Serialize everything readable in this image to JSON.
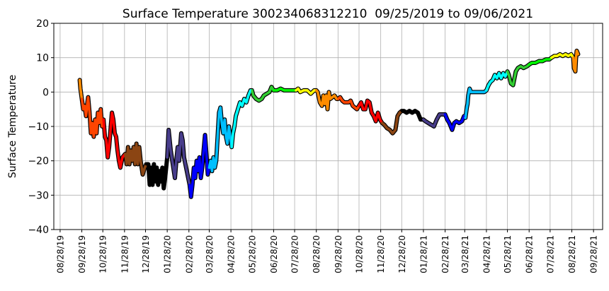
{
  "chart_data": {
    "type": "line",
    "title": "Surface Temperature 300234068312210  09/25/2019 to 09/06/2021",
    "xlabel": "",
    "ylabel": "Surface Temperature",
    "xlim": [
      "2019-08-19",
      "2021-10-11"
    ],
    "ylim": [
      -40,
      20
    ],
    "grid": true,
    "yticks": [
      "20",
      "10",
      "0",
      "−10",
      "−20",
      "−30",
      "−40"
    ],
    "ytick_values": [
      20,
      10,
      0,
      -10,
      -20,
      -30,
      -40
    ],
    "xticks": [
      "08/28/19",
      "09/28/19",
      "10/28/19",
      "11/28/19",
      "12/28/19",
      "01/28/20",
      "02/28/20",
      "03/28/20",
      "04/28/20",
      "05/28/20",
      "06/28/20",
      "07/28/20",
      "08/28/20",
      "09/28/20",
      "10/28/20",
      "11/28/20",
      "12/28/20",
      "01/28/21",
      "02/28/21",
      "03/28/21",
      "04/28/21",
      "05/28/21",
      "06/28/21",
      "07/28/21",
      "08/28/21",
      "09/28/21"
    ],
    "color_periods": [
      {
        "until": "2019-09-28",
        "color": "#FF8C00"
      },
      {
        "until": "2019-10-28",
        "color": "#FF4500"
      },
      {
        "until": "2019-11-28",
        "color": "#FF0000"
      },
      {
        "until": "2019-12-28",
        "color": "#8B4513"
      },
      {
        "until": "2020-01-28",
        "color": "#000000"
      },
      {
        "until": "2020-02-28",
        "color": "#483D8B"
      },
      {
        "until": "2020-03-28",
        "color": "#0000FF"
      },
      {
        "until": "2020-04-28",
        "color": "#00BFFF"
      },
      {
        "until": "2020-05-28",
        "color": "#00FFFF"
      },
      {
        "until": "2020-06-28",
        "color": "#32CD32"
      },
      {
        "until": "2020-07-28",
        "color": "#00FF00"
      },
      {
        "until": "2020-08-28",
        "color": "#FFFF00"
      },
      {
        "until": "2020-09-28",
        "color": "#FF8C00"
      },
      {
        "until": "2020-10-28",
        "color": "#FF4500"
      },
      {
        "until": "2020-11-28",
        "color": "#FF0000"
      },
      {
        "until": "2020-12-28",
        "color": "#8B4513"
      },
      {
        "until": "2021-01-28",
        "color": "#000000"
      },
      {
        "until": "2021-02-28",
        "color": "#483D8B"
      },
      {
        "until": "2021-03-28",
        "color": "#0000FF"
      },
      {
        "until": "2021-04-28",
        "color": "#00BFFF"
      },
      {
        "until": "2021-05-28",
        "color": "#00FFFF"
      },
      {
        "until": "2021-06-28",
        "color": "#32CD32"
      },
      {
        "until": "2021-07-28",
        "color": "#00FF00"
      },
      {
        "until": "2021-08-28",
        "color": "#FFFF00"
      },
      {
        "until": "2021-10-11",
        "color": "#FF8C00"
      }
    ],
    "points": [
      [
        "2019-09-25",
        3.5
      ],
      [
        "2019-09-26",
        1
      ],
      [
        "2019-09-28",
        -2
      ],
      [
        "2019-09-30",
        -5
      ],
      [
        "2019-10-02",
        -4
      ],
      [
        "2019-10-04",
        -7
      ],
      [
        "2019-10-06",
        -3
      ],
      [
        "2019-10-07",
        -1.5
      ],
      [
        "2019-10-09",
        -6
      ],
      [
        "2019-10-11",
        -12
      ],
      [
        "2019-10-13",
        -9
      ],
      [
        "2019-10-15",
        -13
      ],
      [
        "2019-10-17",
        -8
      ],
      [
        "2019-10-19",
        -12
      ],
      [
        "2019-10-21",
        -6
      ],
      [
        "2019-10-23",
        -9
      ],
      [
        "2019-10-25",
        -5
      ],
      [
        "2019-10-27",
        -10
      ],
      [
        "2019-10-29",
        -8
      ],
      [
        "2019-10-31",
        -13
      ],
      [
        "2019-11-02",
        -14
      ],
      [
        "2019-11-04",
        -19
      ],
      [
        "2019-11-06",
        -16
      ],
      [
        "2019-11-08",
        -11
      ],
      [
        "2019-11-10",
        -6
      ],
      [
        "2019-11-12",
        -8
      ],
      [
        "2019-11-14",
        -12
      ],
      [
        "2019-11-16",
        -13
      ],
      [
        "2019-11-18",
        -17
      ],
      [
        "2019-11-20",
        -20
      ],
      [
        "2019-11-22",
        -22
      ],
      [
        "2019-11-25",
        -19
      ],
      [
        "2019-11-29",
        -18
      ],
      [
        "2019-12-01",
        -21
      ],
      [
        "2019-12-03",
        -16
      ],
      [
        "2019-12-05",
        -21
      ],
      [
        "2019-12-07",
        -17
      ],
      [
        "2019-12-09",
        -20
      ],
      [
        "2019-12-11",
        -16
      ],
      [
        "2019-12-13",
        -21
      ],
      [
        "2019-12-15",
        -15
      ],
      [
        "2019-12-17",
        -21
      ],
      [
        "2019-12-19",
        -16
      ],
      [
        "2019-12-21",
        -20
      ],
      [
        "2019-12-24",
        -24
      ],
      [
        "2019-12-27",
        -22
      ],
      [
        "2019-12-29",
        -21
      ],
      [
        "2020-01-01",
        -21
      ],
      [
        "2020-01-03",
        -27
      ],
      [
        "2020-01-05",
        -22
      ],
      [
        "2020-01-07",
        -27
      ],
      [
        "2020-01-09",
        -21
      ],
      [
        "2020-01-11",
        -26
      ],
      [
        "2020-01-13",
        -22
      ],
      [
        "2020-01-15",
        -27
      ],
      [
        "2020-01-17",
        -23
      ],
      [
        "2020-01-19",
        -26
      ],
      [
        "2020-01-21",
        -22
      ],
      [
        "2020-01-23",
        -28
      ],
      [
        "2020-01-25",
        -25
      ],
      [
        "2020-01-28",
        -19
      ],
      [
        "2020-01-30",
        -11
      ],
      [
        "2020-02-02",
        -17
      ],
      [
        "2020-02-05",
        -21
      ],
      [
        "2020-02-08",
        -25
      ],
      [
        "2020-02-10",
        -20
      ],
      [
        "2020-02-12",
        -16
      ],
      [
        "2020-02-14",
        -20
      ],
      [
        "2020-02-17",
        -12
      ],
      [
        "2020-02-19",
        -14
      ],
      [
        "2020-02-21",
        -19
      ],
      [
        "2020-02-24",
        -22
      ],
      [
        "2020-02-27",
        -25
      ],
      [
        "2020-02-29",
        -27
      ],
      [
        "2020-03-02",
        -30.5
      ],
      [
        "2020-03-04",
        -27
      ],
      [
        "2020-03-06",
        -22
      ],
      [
        "2020-03-08",
        -25
      ],
      [
        "2020-03-10",
        -20
      ],
      [
        "2020-03-12",
        -23
      ],
      [
        "2020-03-14",
        -19
      ],
      [
        "2020-03-16",
        -25
      ],
      [
        "2020-03-18",
        -22
      ],
      [
        "2020-03-20",
        -17
      ],
      [
        "2020-03-22",
        -12.5
      ],
      [
        "2020-03-24",
        -18
      ],
      [
        "2020-03-26",
        -24
      ],
      [
        "2020-03-28",
        -22
      ],
      [
        "2020-03-30",
        -20
      ],
      [
        "2020-04-01",
        -23
      ],
      [
        "2020-04-03",
        -19
      ],
      [
        "2020-04-05",
        -22
      ],
      [
        "2020-04-07",
        -20
      ],
      [
        "2020-04-09",
        -13
      ],
      [
        "2020-04-11",
        -6
      ],
      [
        "2020-04-13",
        -4.5
      ],
      [
        "2020-04-15",
        -9
      ],
      [
        "2020-04-17",
        -12
      ],
      [
        "2020-04-19",
        -8
      ],
      [
        "2020-04-21",
        -13
      ],
      [
        "2020-04-23",
        -15
      ],
      [
        "2020-04-25",
        -10
      ],
      [
        "2020-04-27",
        -13
      ],
      [
        "2020-04-29",
        -16
      ],
      [
        "2020-05-01",
        -12
      ],
      [
        "2020-05-03",
        -10
      ],
      [
        "2020-05-05",
        -7
      ],
      [
        "2020-05-08",
        -5
      ],
      [
        "2020-05-11",
        -3
      ],
      [
        "2020-05-14",
        -4
      ],
      [
        "2020-05-17",
        -2
      ],
      [
        "2020-05-20",
        -3
      ],
      [
        "2020-05-23",
        -1
      ],
      [
        "2020-05-26",
        0.5
      ],
      [
        "2020-05-28",
        0.5
      ],
      [
        "2020-05-30",
        -1
      ],
      [
        "2020-06-03",
        -2
      ],
      [
        "2020-06-07",
        -2.5
      ],
      [
        "2020-06-11",
        -2
      ],
      [
        "2020-06-14",
        -1
      ],
      [
        "2020-06-18",
        -0.5
      ],
      [
        "2020-06-22",
        0
      ],
      [
        "2020-06-25",
        1.5
      ],
      [
        "2020-06-28",
        0.5
      ],
      [
        "2020-07-03",
        0.5
      ],
      [
        "2020-07-08",
        1
      ],
      [
        "2020-07-13",
        0.5
      ],
      [
        "2020-07-20",
        0.5
      ],
      [
        "2020-07-27",
        0.5
      ],
      [
        "2020-07-30",
        0.5
      ],
      [
        "2020-08-02",
        1
      ],
      [
        "2020-08-05",
        0
      ],
      [
        "2020-08-10",
        0.5
      ],
      [
        "2020-08-15",
        0.5
      ],
      [
        "2020-08-20",
        -0.5
      ],
      [
        "2020-08-25",
        0.5
      ],
      [
        "2020-08-28",
        0.5
      ],
      [
        "2020-08-30",
        0
      ],
      [
        "2020-09-02",
        -3
      ],
      [
        "2020-09-05",
        -4
      ],
      [
        "2020-09-07",
        -1
      ],
      [
        "2020-09-09",
        -3.5
      ],
      [
        "2020-09-11",
        -1
      ],
      [
        "2020-09-13",
        -5
      ],
      [
        "2020-09-15",
        0
      ],
      [
        "2020-09-17",
        -2
      ],
      [
        "2020-09-20",
        -1.5
      ],
      [
        "2020-09-23",
        -1
      ],
      [
        "2020-09-26",
        -2
      ],
      [
        "2020-09-28",
        -2
      ],
      [
        "2020-10-01",
        -1.5
      ],
      [
        "2020-10-04",
        -2.5
      ],
      [
        "2020-10-07",
        -3
      ],
      [
        "2020-10-10",
        -3
      ],
      [
        "2020-10-13",
        -3
      ],
      [
        "2020-10-16",
        -2.5
      ],
      [
        "2020-10-19",
        -4
      ],
      [
        "2020-10-22",
        -4.5
      ],
      [
        "2020-10-25",
        -5
      ],
      [
        "2020-10-28",
        -4
      ],
      [
        "2020-10-31",
        -3
      ],
      [
        "2020-11-03",
        -5
      ],
      [
        "2020-11-06",
        -5
      ],
      [
        "2020-11-09",
        -2.5
      ],
      [
        "2020-11-12",
        -3
      ],
      [
        "2020-11-15",
        -6
      ],
      [
        "2020-11-18",
        -7
      ],
      [
        "2020-11-21",
        -8.5
      ],
      [
        "2020-11-24",
        -6
      ],
      [
        "2020-11-27",
        -8
      ],
      [
        "2020-11-30",
        -9
      ],
      [
        "2020-12-03",
        -9.5
      ],
      [
        "2020-12-07",
        -10.5
      ],
      [
        "2020-12-11",
        -11
      ],
      [
        "2020-12-15",
        -12
      ],
      [
        "2020-12-19",
        -11
      ],
      [
        "2020-12-22",
        -7
      ],
      [
        "2020-12-25",
        -6
      ],
      [
        "2020-12-28",
        -5.5
      ],
      [
        "2020-12-31",
        -5.5
      ],
      [
        "2021-01-04",
        -6
      ],
      [
        "2021-01-08",
        -5.5
      ],
      [
        "2021-01-12",
        -6
      ],
      [
        "2021-01-16",
        -5.5
      ],
      [
        "2021-01-20",
        -6
      ],
      [
        "2021-01-24",
        -8
      ],
      [
        "2021-01-28",
        -8
      ],
      [
        "2021-01-31",
        -8.5
      ],
      [
        "2021-02-04",
        -9
      ],
      [
        "2021-02-08",
        -9.5
      ],
      [
        "2021-02-12",
        -10
      ],
      [
        "2021-02-16",
        -8
      ],
      [
        "2021-02-20",
        -6.5
      ],
      [
        "2021-02-24",
        -6.5
      ],
      [
        "2021-02-28",
        -6.5
      ],
      [
        "2021-03-03",
        -8
      ],
      [
        "2021-03-06",
        -9
      ],
      [
        "2021-03-10",
        -11
      ],
      [
        "2021-03-13",
        -9
      ],
      [
        "2021-03-16",
        -8.5
      ],
      [
        "2021-03-20",
        -9
      ],
      [
        "2021-03-24",
        -8.5
      ],
      [
        "2021-03-27",
        -7
      ],
      [
        "2021-03-29",
        -7.5
      ],
      [
        "2021-03-31",
        -4.5
      ],
      [
        "2021-04-01",
        -3.5
      ],
      [
        "2021-04-02",
        -1
      ],
      [
        "2021-04-04",
        1
      ],
      [
        "2021-04-06",
        0
      ],
      [
        "2021-04-10",
        0
      ],
      [
        "2021-04-15",
        0
      ],
      [
        "2021-04-20",
        0
      ],
      [
        "2021-04-25",
        0
      ],
      [
        "2021-04-28",
        0.5
      ],
      [
        "2021-05-01",
        2
      ],
      [
        "2021-05-04",
        3
      ],
      [
        "2021-05-07",
        3.5
      ],
      [
        "2021-05-10",
        5
      ],
      [
        "2021-05-13",
        4
      ],
      [
        "2021-05-16",
        5.5
      ],
      [
        "2021-05-19",
        4
      ],
      [
        "2021-05-22",
        5.5
      ],
      [
        "2021-05-25",
        4.5
      ],
      [
        "2021-05-28",
        6
      ],
      [
        "2021-05-30",
        5
      ],
      [
        "2021-06-02",
        2.5
      ],
      [
        "2021-06-05",
        2
      ],
      [
        "2021-06-07",
        4
      ],
      [
        "2021-06-09",
        6
      ],
      [
        "2021-06-12",
        7
      ],
      [
        "2021-06-16",
        7.5
      ],
      [
        "2021-06-20",
        7
      ],
      [
        "2021-06-25",
        7.5
      ],
      [
        "2021-06-28",
        8
      ],
      [
        "2021-07-02",
        8.5
      ],
      [
        "2021-07-07",
        8.5
      ],
      [
        "2021-07-12",
        9
      ],
      [
        "2021-07-17",
        9
      ],
      [
        "2021-07-22",
        9.5
      ],
      [
        "2021-07-27",
        9.5
      ],
      [
        "2021-07-30",
        10
      ],
      [
        "2021-08-03",
        10.5
      ],
      [
        "2021-08-07",
        10.5
      ],
      [
        "2021-08-11",
        11
      ],
      [
        "2021-08-15",
        10.5
      ],
      [
        "2021-08-19",
        11
      ],
      [
        "2021-08-23",
        10.5
      ],
      [
        "2021-08-27",
        11
      ],
      [
        "2021-08-30",
        10
      ],
      [
        "2021-08-31",
        7
      ],
      [
        "2021-09-02",
        6
      ],
      [
        "2021-09-03",
        10
      ],
      [
        "2021-09-04",
        12
      ],
      [
        "2021-09-06",
        11
      ]
    ]
  }
}
